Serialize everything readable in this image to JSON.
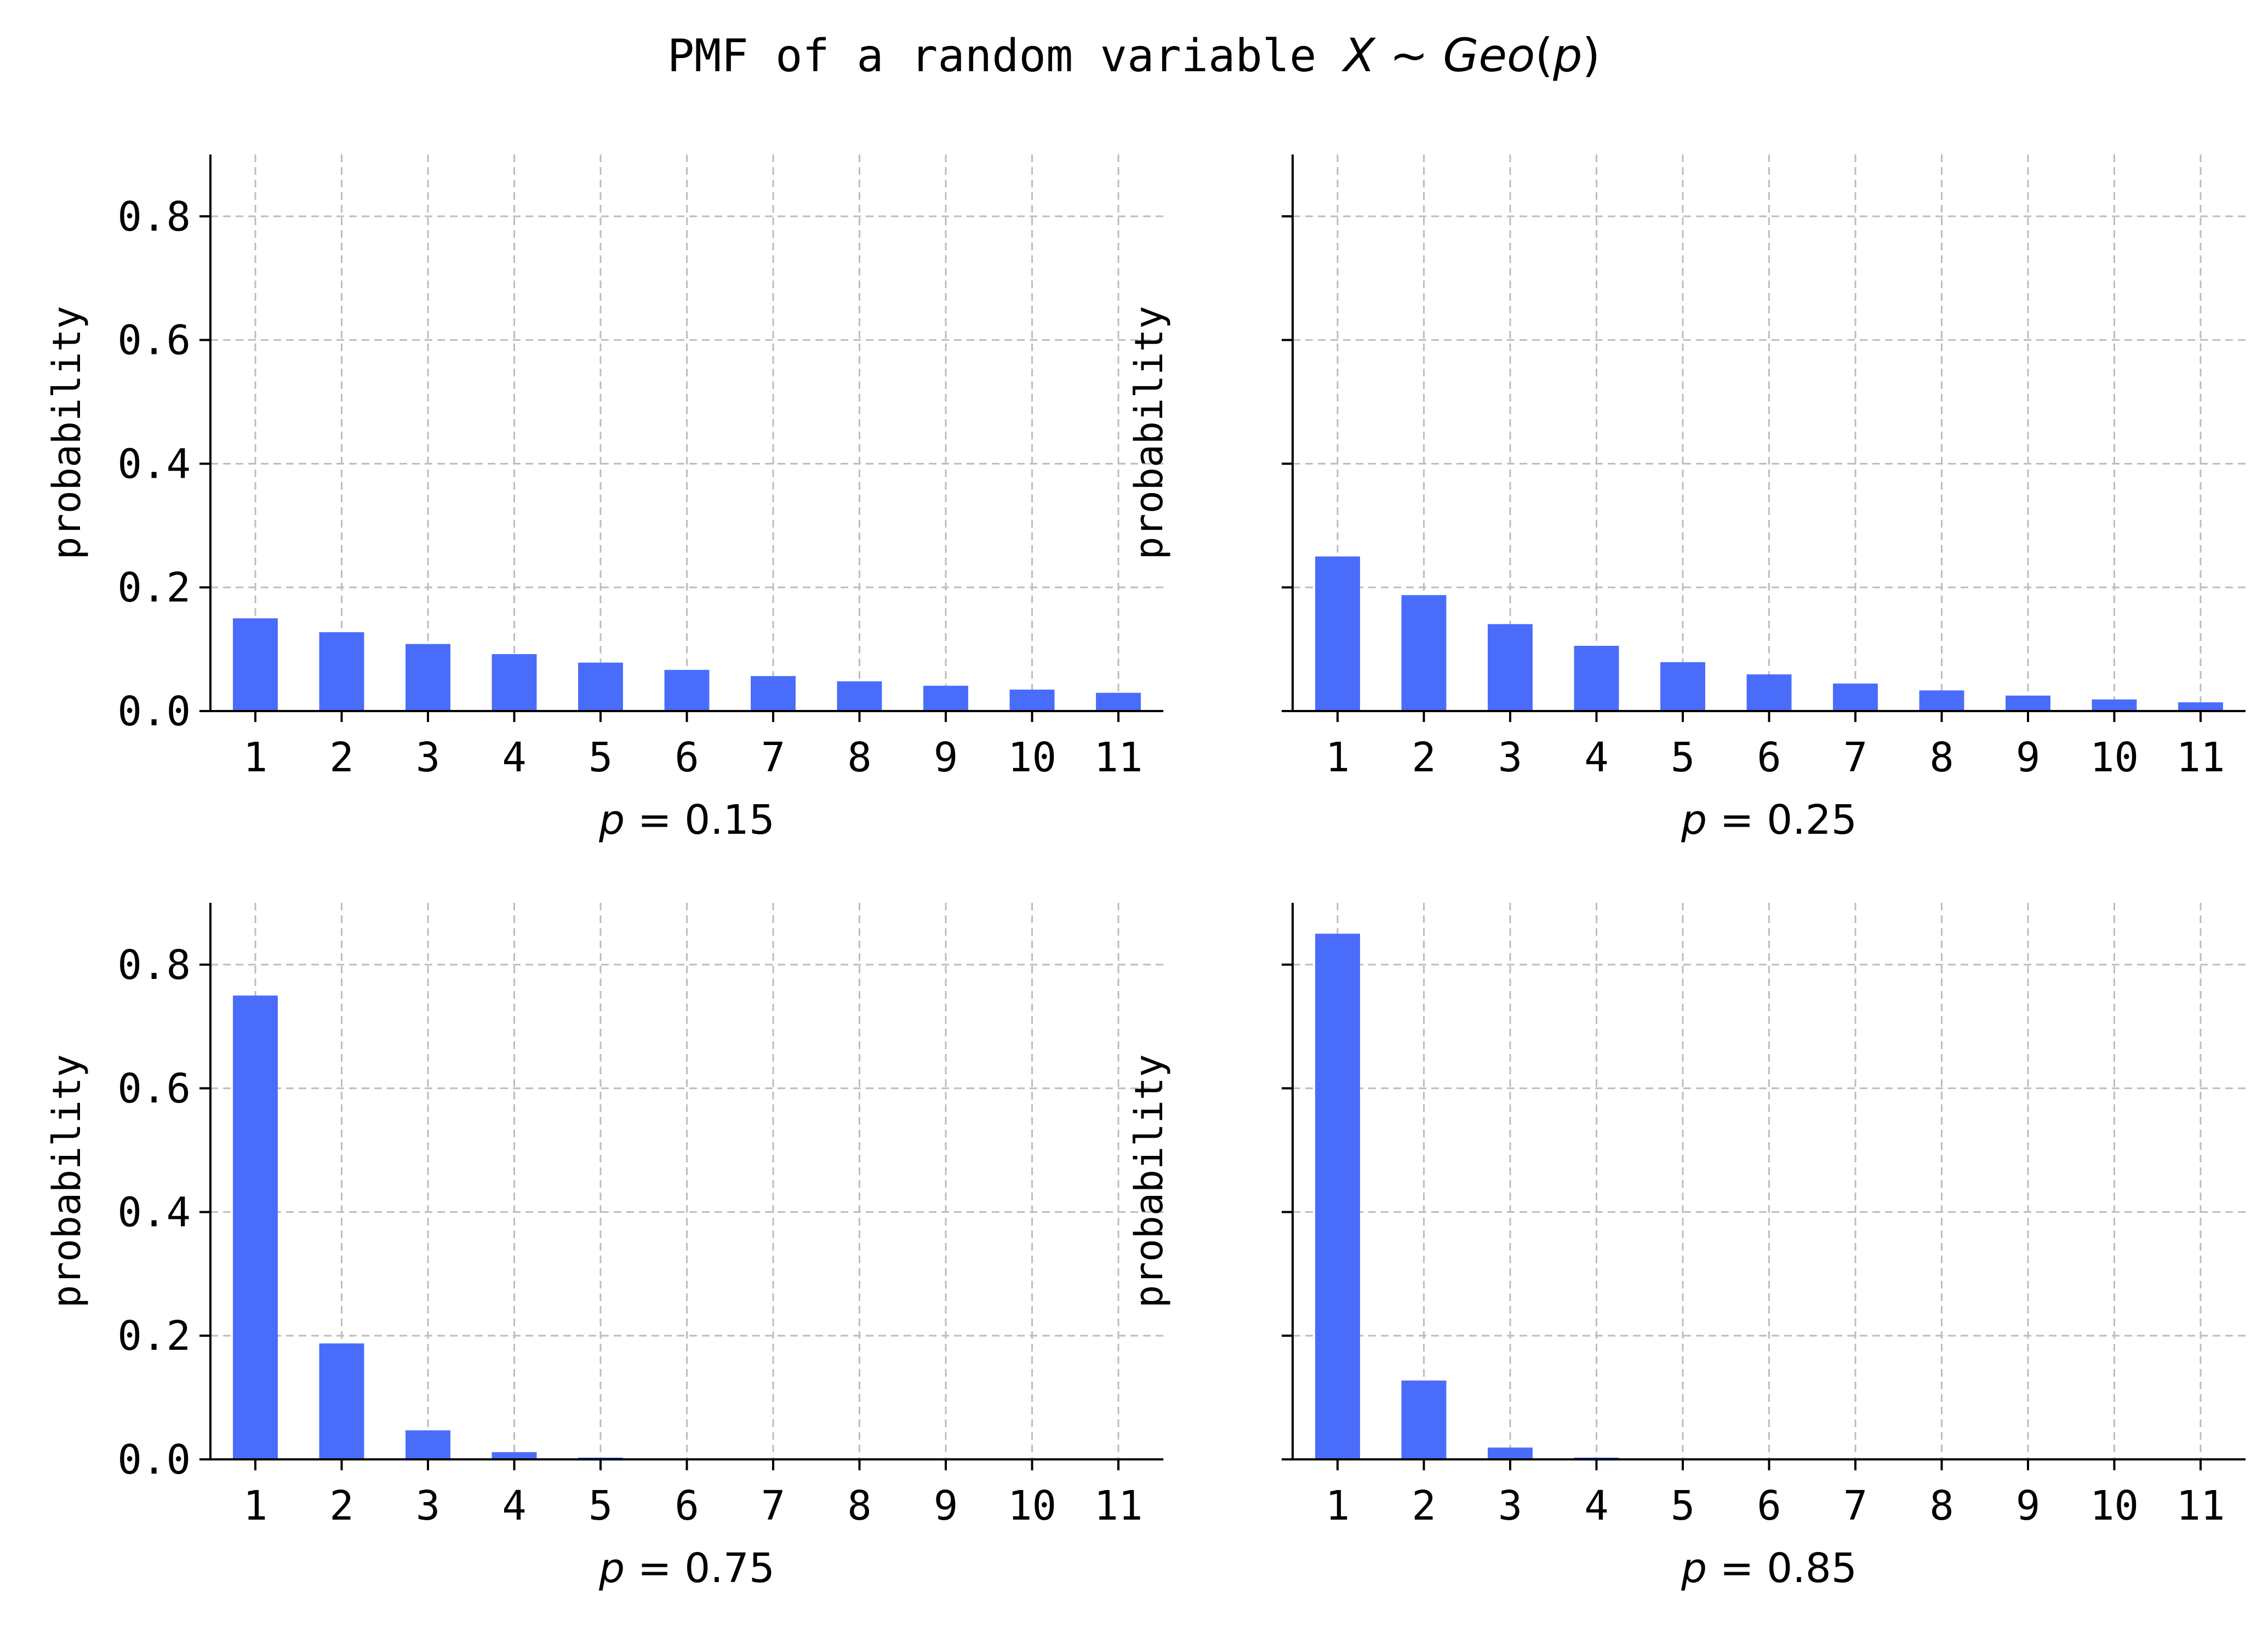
{
  "figure": {
    "title_text": "PMF of a random variable ",
    "title_math": {
      "var": "X",
      "tilde": " ~ ",
      "dist": "Geo",
      "open": "(",
      "param": "p",
      "close": ")"
    }
  },
  "chart_data": [
    {
      "type": "bar",
      "categories": [
        "1",
        "2",
        "3",
        "4",
        "5",
        "6",
        "7",
        "8",
        "9",
        "10",
        "11"
      ],
      "values": [
        0.15,
        0.1275,
        0.1084,
        0.0921,
        0.0783,
        0.0666,
        0.0566,
        0.0481,
        0.0409,
        0.0347,
        0.0295
      ],
      "ylabel": "probability",
      "xlabel": {
        "var": "p",
        "eq": " = ",
        "val": "0.15"
      },
      "ylim": [
        0,
        0.9
      ],
      "yticks": [
        "0.0",
        "0.2",
        "0.4",
        "0.6",
        "0.8"
      ],
      "show_ytick_labels": true,
      "grid": true,
      "bar_color": "#4a6cfa"
    },
    {
      "type": "bar",
      "categories": [
        "1",
        "2",
        "3",
        "4",
        "5",
        "6",
        "7",
        "8",
        "9",
        "10",
        "11"
      ],
      "values": [
        0.25,
        0.1875,
        0.1406,
        0.1055,
        0.0791,
        0.0593,
        0.0445,
        0.0334,
        0.025,
        0.0188,
        0.0141
      ],
      "ylabel": "probability",
      "xlabel": {
        "var": "p",
        "eq": " = ",
        "val": "0.25"
      },
      "ylim": [
        0,
        0.9
      ],
      "yticks": [
        "0.0",
        "0.2",
        "0.4",
        "0.6",
        "0.8"
      ],
      "show_ytick_labels": false,
      "grid": true,
      "bar_color": "#4a6cfa"
    },
    {
      "type": "bar",
      "categories": [
        "1",
        "2",
        "3",
        "4",
        "5",
        "6",
        "7",
        "8",
        "9",
        "10",
        "11"
      ],
      "values": [
        0.75,
        0.1875,
        0.0469,
        0.0117,
        0.0029,
        0.0007,
        0.0002,
        0.0,
        0.0,
        0.0,
        0.0
      ],
      "ylabel": "probability",
      "xlabel": {
        "var": "p",
        "eq": " = ",
        "val": "0.75"
      },
      "ylim": [
        0,
        0.9
      ],
      "yticks": [
        "0.0",
        "0.2",
        "0.4",
        "0.6",
        "0.8"
      ],
      "show_ytick_labels": true,
      "grid": true,
      "bar_color": "#4a6cfa"
    },
    {
      "type": "bar",
      "categories": [
        "1",
        "2",
        "3",
        "4",
        "5",
        "6",
        "7",
        "8",
        "9",
        "10",
        "11"
      ],
      "values": [
        0.85,
        0.1275,
        0.0191,
        0.0029,
        0.0004,
        0.0001,
        0.0,
        0.0,
        0.0,
        0.0,
        0.0
      ],
      "ylabel": "probability",
      "xlabel": {
        "var": "p",
        "eq": " = ",
        "val": "0.85"
      },
      "ylim": [
        0,
        0.9
      ],
      "yticks": [
        "0.0",
        "0.2",
        "0.4",
        "0.6",
        "0.8"
      ],
      "show_ytick_labels": false,
      "grid": true,
      "bar_color": "#4a6cfa"
    }
  ]
}
